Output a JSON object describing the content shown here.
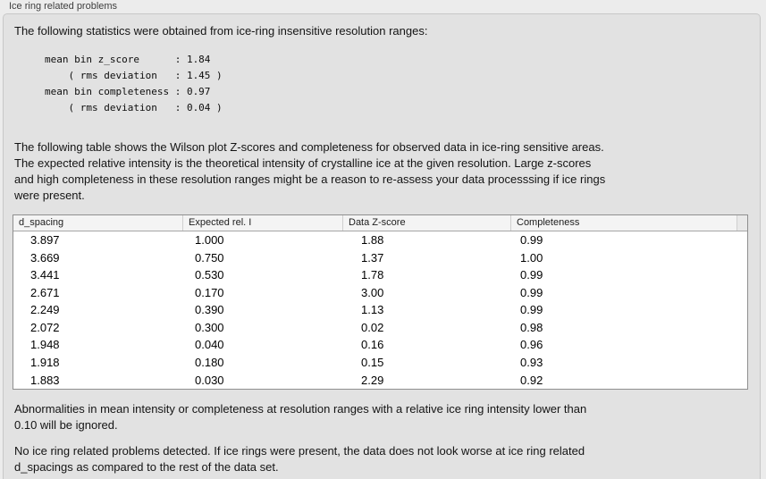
{
  "panel": {
    "title": "Ice ring related problems"
  },
  "intro": "The following statistics were obtained from ice-ring insensitive resolution ranges:",
  "stats": {
    "lines": [
      "mean bin z_score      : 1.84",
      "    ( rms deviation   : 1.45 )",
      "mean bin completeness : 0.97",
      "    ( rms deviation   : 0.04 )"
    ]
  },
  "description": {
    "lines": [
      "The following table shows the Wilson plot Z-scores and completeness for observed data in ice-ring sensitive areas.",
      "The expected relative intensity is the theoretical intensity of crystalline ice at the given resolution. Large z-scores",
      "and high completeness in these resolution ranges might be a reason to re-assess your data processsing if ice rings",
      "were present."
    ]
  },
  "table": {
    "columns": [
      "d_spacing",
      "Expected rel. I",
      "Data Z-score",
      "Completeness"
    ],
    "rows": [
      [
        "3.897",
        "1.000",
        "1.88",
        "0.99"
      ],
      [
        "3.669",
        "0.750",
        "1.37",
        "1.00"
      ],
      [
        "3.441",
        "0.530",
        "1.78",
        "0.99"
      ],
      [
        "2.671",
        "0.170",
        "3.00",
        "0.99"
      ],
      [
        "2.249",
        "0.390",
        "1.13",
        "0.99"
      ],
      [
        "2.072",
        "0.300",
        "0.02",
        "0.98"
      ],
      [
        "1.948",
        "0.040",
        "0.16",
        "0.96"
      ],
      [
        "1.918",
        "0.180",
        "0.15",
        "0.93"
      ],
      [
        "1.883",
        "0.030",
        "2.29",
        "0.92"
      ]
    ]
  },
  "note": {
    "lines": [
      "Abnormalities in mean intensity or completeness at resolution ranges with a relative ice ring intensity lower than",
      "0.10 will be ignored."
    ]
  },
  "conclusion": {
    "lines": [
      "No ice ring related problems detected. If ice rings were present, the data does not look worse at ice ring related",
      "d_spacings as compared to the rest of the data set."
    ]
  },
  "colors": {
    "outer_bg": "#ececec",
    "panel_bg": "#e2e2e2",
    "panel_border": "#c7c7c7",
    "table_border": "#8f8f8f",
    "header_bg": "#f4f4f4",
    "row_bg": "#ffffff"
  }
}
